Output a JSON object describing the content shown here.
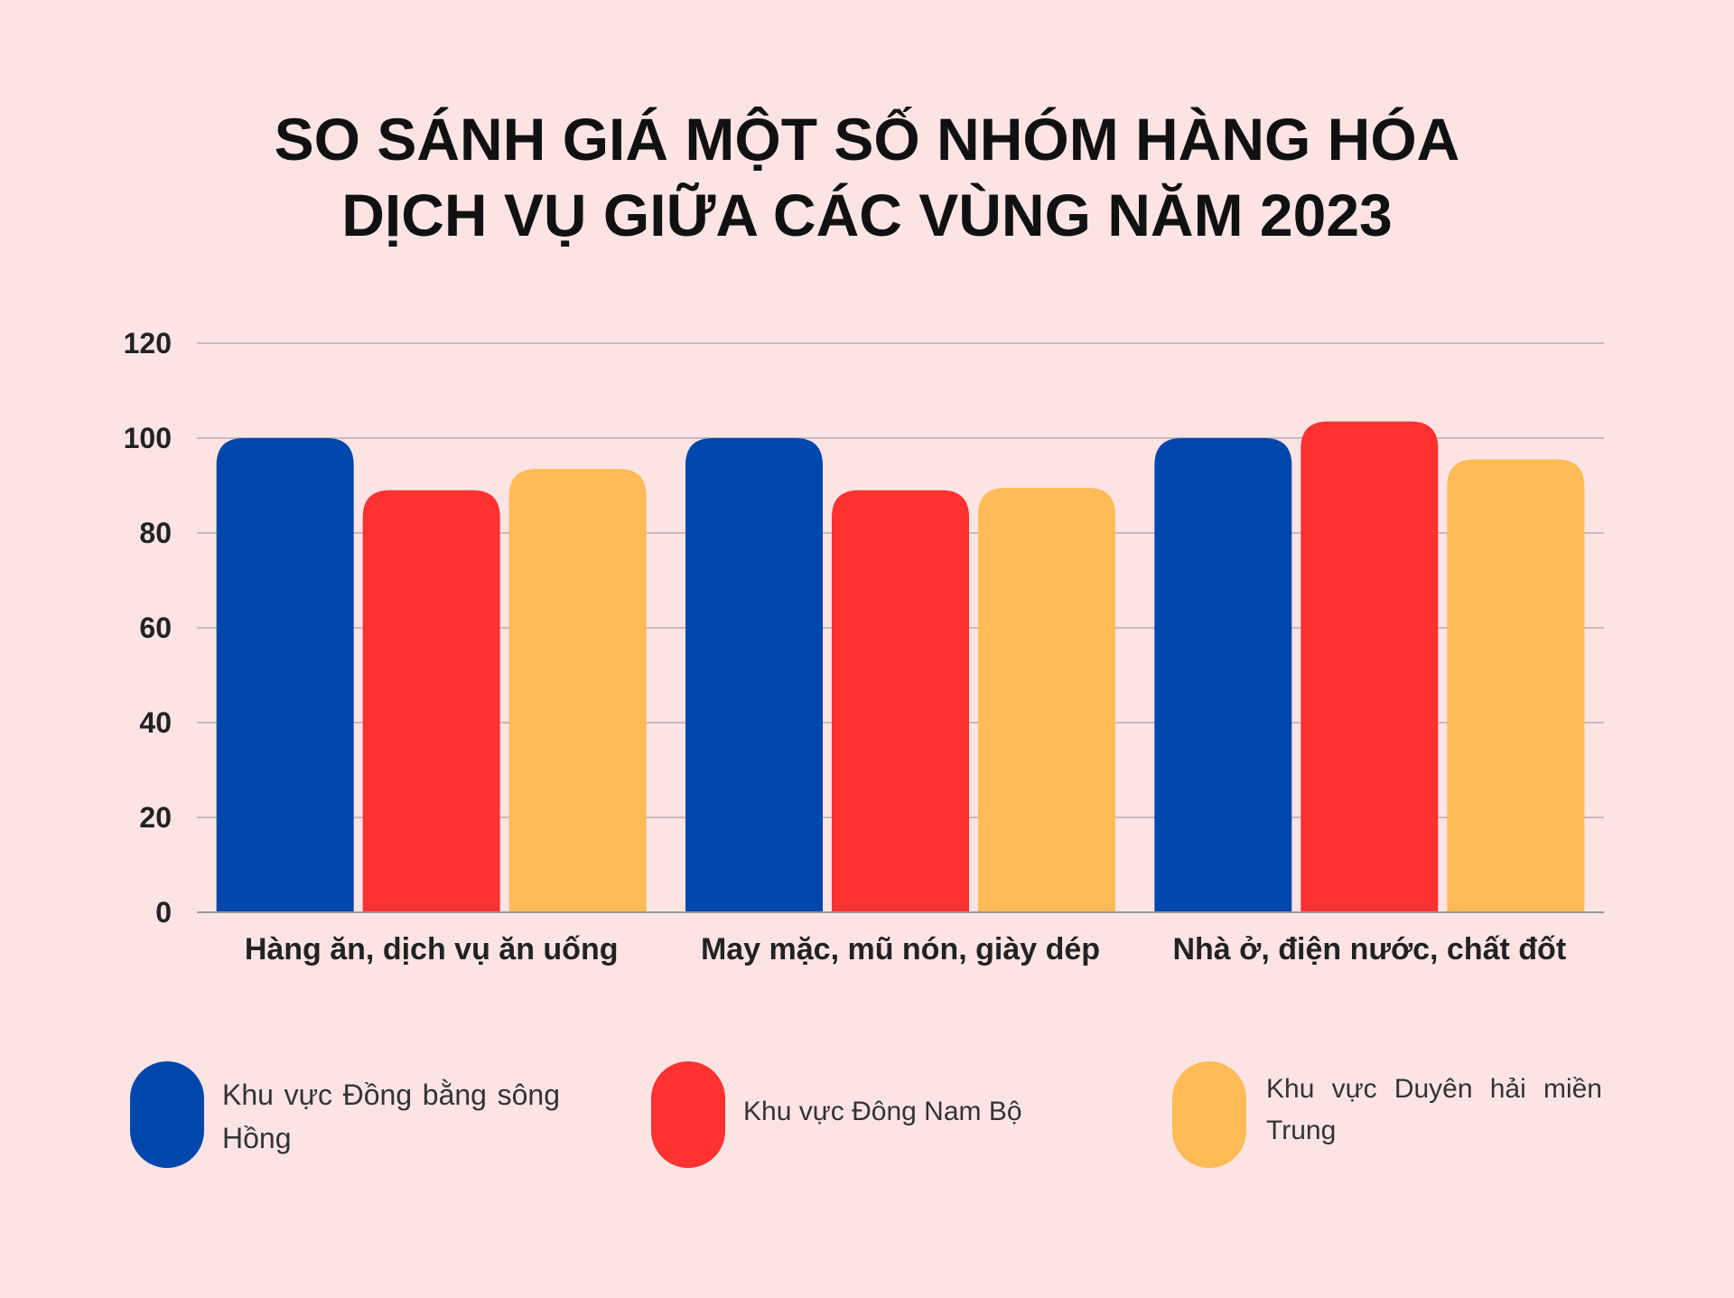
{
  "chart_data": {
    "type": "bar",
    "title_line1": "SO SÁNH GIÁ MỘT SỐ NHÓM HÀNG HÓA",
    "title_line2": "DỊCH VỤ GIỮA CÁC VÙNG NĂM 2023",
    "categories": [
      "Hàng ăn, dịch vụ ăn uống",
      "May mặc, mũ nón, giày dép",
      "Nhà ở, điện nước, chất đốt"
    ],
    "series": [
      {
        "name": "Khu vực Đồng bằng sông Hồng",
        "color": "#0047ab",
        "values": [
          100,
          100,
          100
        ]
      },
      {
        "name": "Khu vực Đông Nam Bộ",
        "color": "#ff3131",
        "values": [
          89,
          89,
          103.5
        ]
      },
      {
        "name": "Khu vực Duyên hải miền Trung",
        "color": "#ffbb55",
        "values": [
          93.5,
          89.5,
          95.5
        ]
      }
    ],
    "yticks": [
      "0",
      "20",
      "40",
      "60",
      "80",
      "100",
      "120"
    ],
    "ylim": [
      0,
      120
    ],
    "grid": true,
    "legend_position": "bottom"
  }
}
